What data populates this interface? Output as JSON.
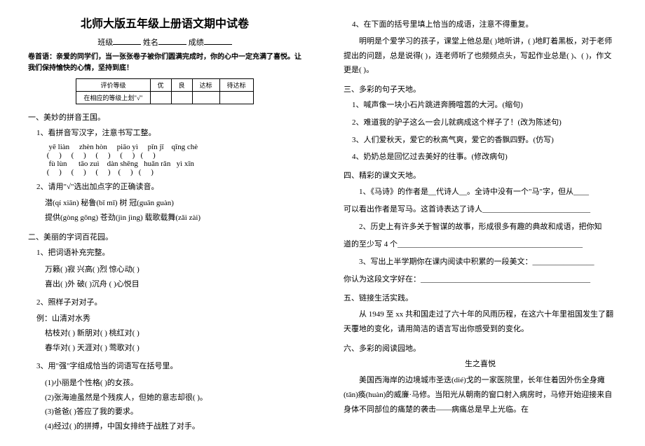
{
  "title": "北师大版五年级上册语文期中试卷",
  "header": {
    "class_label": "班级",
    "name_label": "姓名",
    "score_label": "成绩"
  },
  "intro": "卷首语：亲爱的同学们，当一张张卷子被你们圆满完成时，你的心中一定充满了喜悦。让我们保持愉快的心情，坚持到底！",
  "grade_table": {
    "r1": [
      "评价等级",
      "优",
      "良",
      "达标",
      "待达标"
    ],
    "r2": "在相应的等级上划\"√\""
  },
  "s1": {
    "h": "一、美妙的拼音王国。",
    "i1": "1、看拼音写汉字，注意书写工整。",
    "py1": "  yē liàn     zhèn hòn     piāo yì     pǐn jī    qīng chè",
    "pa1": " (     )     (     )     (     )     (     )   (     )",
    "py2": "  fù lùn      tāo zuì    dàn shēng   huǎn rǎn   yì xīn",
    "pa2": " (     )     (     )     (     )    (     )   (     )",
    "i2": "2、请用\"√\"选出加点字的正确读音。",
    "l2a": "潜(qí xiān)    秘鲁(bī mī)    树    冠(guān guàn)",
    "l2b": "提供(gòng gōng)   苍劲(jìn jìng)   载歌载舞(zǎi   zài)"
  },
  "s2": {
    "h": "二、美丽的字词百花园。",
    "i1": "1、把词语补充完整。",
    "l1a": "万籁(    )寂    兴高(    )烈      惊心动(    )",
    "l1b": "喜出(    )外    破(    )沉舟     (    )心悦目",
    "i2": "2、照样子对对子。",
    "ex": "例：山清对水秀",
    "l2a": "枯枝对(        )    新朋对(        )    桃红对(        )",
    "l2b": "春华对(        )    天涯对(        )    莺歌对(        )",
    "i3": "3、用\"强\"字组成恰当的词语写在括号里。",
    "l3a": "(1)小丽是个性格(        )的女孩。",
    "l3b": "(2)张海迪虽然是个残疾人，但她的意志却很(        )。",
    "l3c": "(3)爸爸(        )答应了我的要求。",
    "l3d": "(4)经过(        )的拼搏，中国女排终于战胜了对手。"
  },
  "r": {
    "i4": "4、在下面的括号里填上恰当的成语，注意不得重复。",
    "p4": "明明是个爱学习的孩子，课堂上他总是(            )地听讲，(            )地盯着黑板，对于老师提出的问题，总是说得(            )，连老师听了也频频点头，写起作业总是(            )、(            )，作文更是(            )。",
    "s3": "三、多彩的句子天地。",
    "i3a": "1、喊声像一块小石片跳进奔腾喧嚣的大河。(缩句)",
    "i3b": "2、难道我的驴子这么一会儿就病成这个样子了！(改为陈述句)",
    "i3c": "3、人们爱秋天，爱它的秋高气爽，爱它的香飘四野。(仿写)",
    "i3d": "4、奶奶总是回忆过去美好的往事。(修改病句)",
    "s4": "四、精彩的课文天地。",
    "i4a_pre": "1、《马诗》的作者是__代诗人__。全诗中没有一个\"马\"字，但从____",
    "i4a_post": "可以看出作者是写马。这首诗表达了诗人____________________________",
    "i4b": "2、历史上有许多关于智谋的故事，形成很多有趣的典故和成语，把你知",
    "i4b2": "道的至少写 4 个________________________________________________",
    "i4c": "3、写出上半学期你在课内阅读中积累的一段美文：________________",
    "i4c2": "你认为这段文字好在：____________________________________________",
    "s5": "五、链接生活实践。",
    "p5": "从 1949 至 xx 共和国走过了六十年的风雨历程，在这六十年里祖国发生了翻天覆地的变化，请用简洁的语言写出你感受到的变化。",
    "s6": "六、多彩的阅读园地。",
    "story_title": "生之喜悦",
    "story": "美国西海岸的边境城市圣迭(dié)戈的一家医院里，长年住着因外伤全身瘫(tān)痪(huàn)的威廉·马修。当阳光从朝南的窗口射入病房时，马修开始迎接来自身体不同部位的痛楚的袭击——病痛总是早上光临。在"
  }
}
